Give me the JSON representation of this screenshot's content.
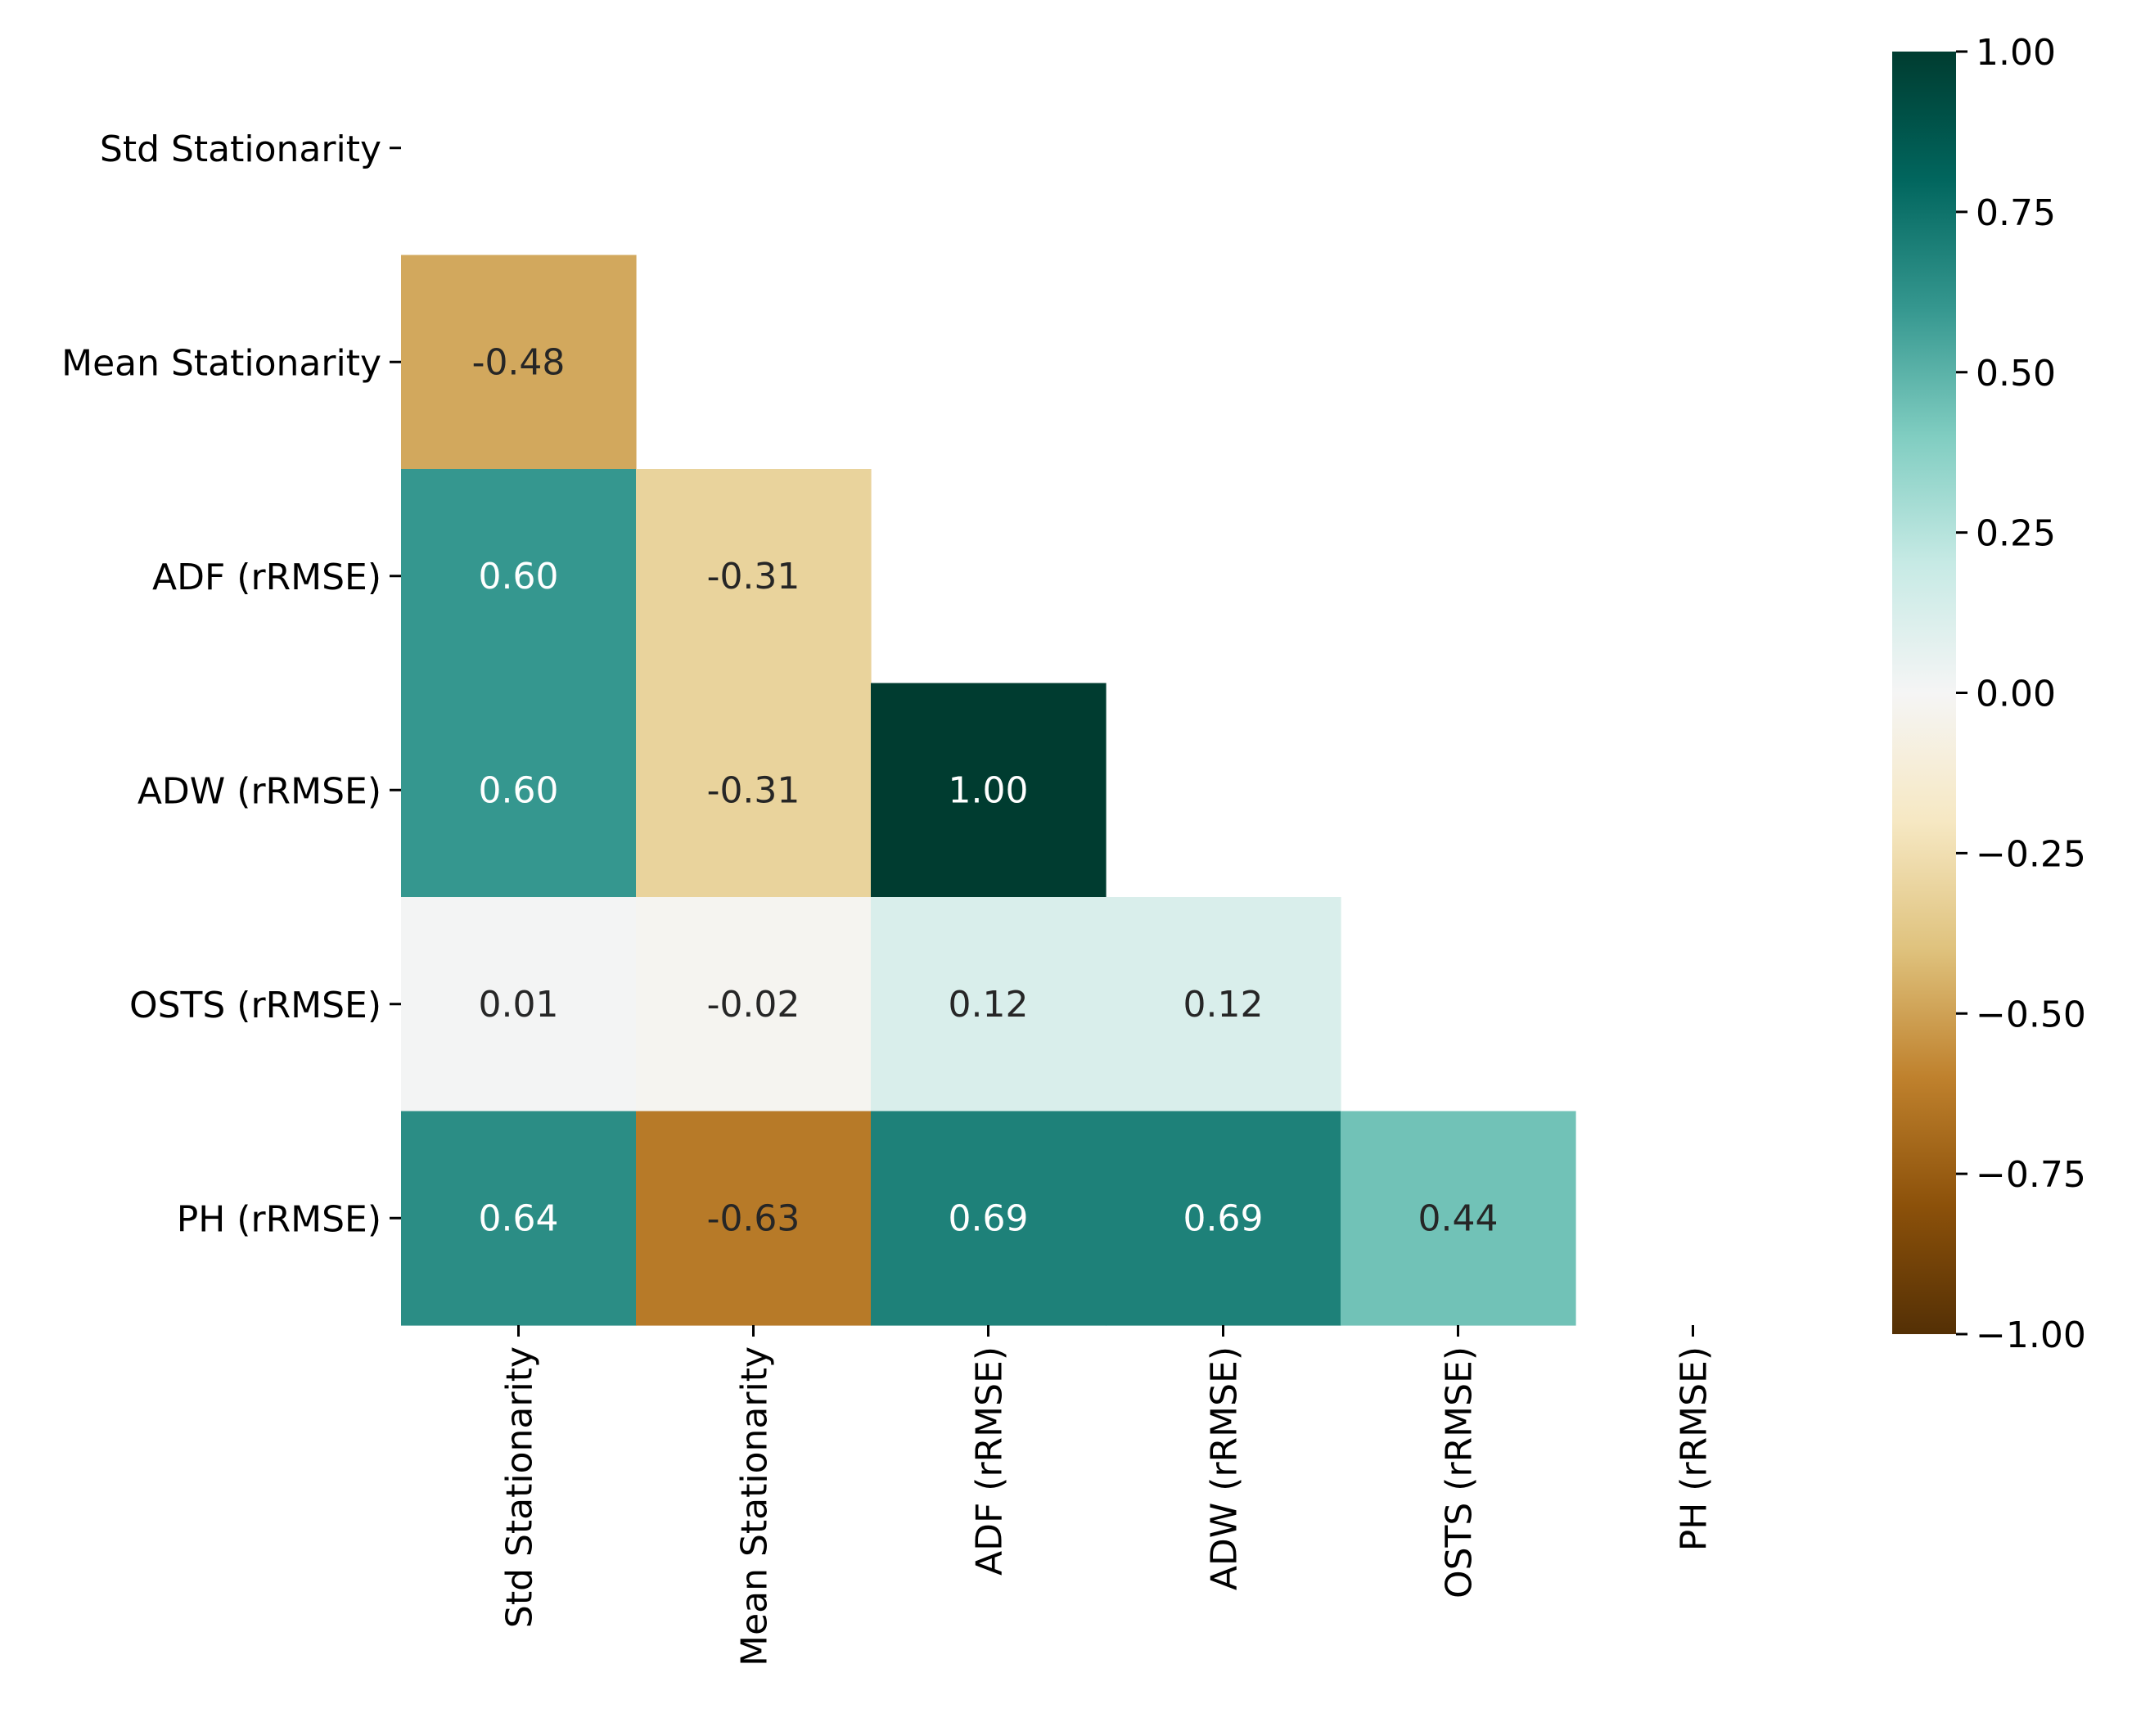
{
  "chart_data": {
    "type": "heatmap",
    "title": "",
    "xlabel": "",
    "ylabel": "",
    "labels": [
      "Std Stationarity",
      "Mean Stationarity",
      "ADF (rRMSE)",
      "ADW (rRMSE)",
      "OSTS (rRMSE)",
      "PH (rRMSE)"
    ],
    "matrix": [
      [
        null,
        null,
        null,
        null,
        null,
        null
      ],
      [
        -0.48,
        null,
        null,
        null,
        null,
        null
      ],
      [
        0.6,
        -0.31,
        null,
        null,
        null,
        null
      ],
      [
        0.6,
        -0.31,
        1.0,
        null,
        null,
        null
      ],
      [
        0.01,
        -0.02,
        0.12,
        0.12,
        null,
        null
      ],
      [
        0.64,
        -0.63,
        0.69,
        0.69,
        0.44,
        null
      ]
    ],
    "mask": "upper-triangle-including-diagonal",
    "colormap": "BrBG",
    "vmin": -1.0,
    "vmax": 1.0,
    "colorbar_ticks": [
      "1.00",
      "0.75",
      "0.50",
      "0.25",
      "0.00",
      "−0.25",
      "−0.50",
      "−0.75",
      "−1.00"
    ],
    "colorbar_tick_values": [
      1.0,
      0.75,
      0.5,
      0.25,
      0.0,
      -0.25,
      -0.5,
      -0.75,
      -1.0
    ],
    "annotation_format": "0.00"
  }
}
